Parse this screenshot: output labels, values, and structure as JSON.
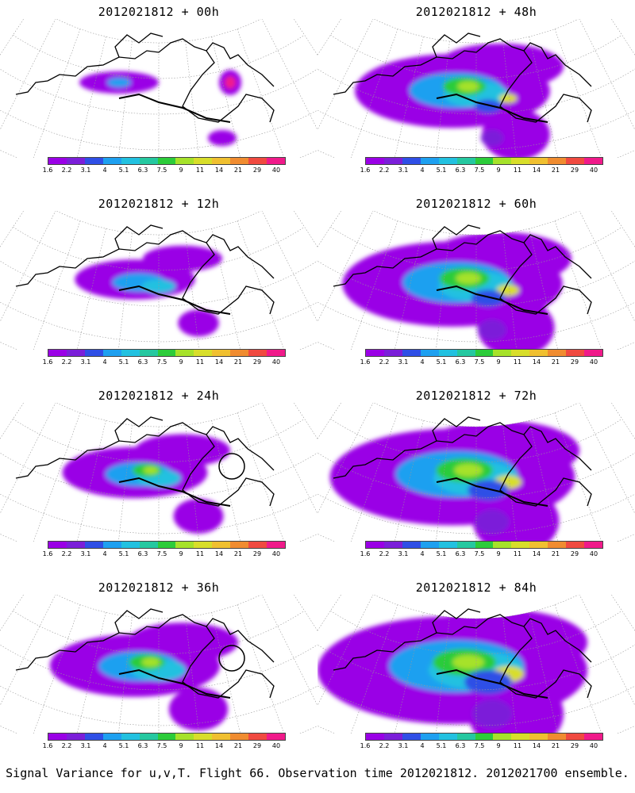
{
  "colorbar": {
    "labels": [
      "1.6",
      "2.2",
      "3.1",
      "4",
      "5.1",
      "6.3",
      "7.5",
      "9",
      "11",
      "14",
      "21",
      "29",
      "40"
    ],
    "colors": [
      "#9a00e6",
      "#7b1fd9",
      "#2f4fe6",
      "#1ea0f0",
      "#22c1e0",
      "#25c8a0",
      "#2ccc3a",
      "#a6e22a",
      "#d8de2a",
      "#f0c030",
      "#f08c30",
      "#f04a40",
      "#f01a8a"
    ]
  },
  "panels": [
    {
      "title": "2012021812 + 00h",
      "col": 0,
      "row": 0,
      "level": 0
    },
    {
      "title": "2012021812 + 48h",
      "col": 1,
      "row": 0,
      "level": 4
    },
    {
      "title": "2012021812 + 12h",
      "col": 0,
      "row": 1,
      "level": 1
    },
    {
      "title": "2012021812 + 60h",
      "col": 1,
      "row": 1,
      "level": 5
    },
    {
      "title": "2012021812 + 24h",
      "col": 0,
      "row": 2,
      "level": 2
    },
    {
      "title": "2012021812 + 72h",
      "col": 1,
      "row": 2,
      "level": 6
    },
    {
      "title": "2012021812 + 36h",
      "col": 0,
      "row": 3,
      "level": 3
    },
    {
      "title": "2012021812 + 84h",
      "col": 1,
      "row": 3,
      "level": 7
    }
  ],
  "footer": "Signal Variance for u,v,T. Flight 66. Observation time 2012021812. 2012021700 ensemble."
}
